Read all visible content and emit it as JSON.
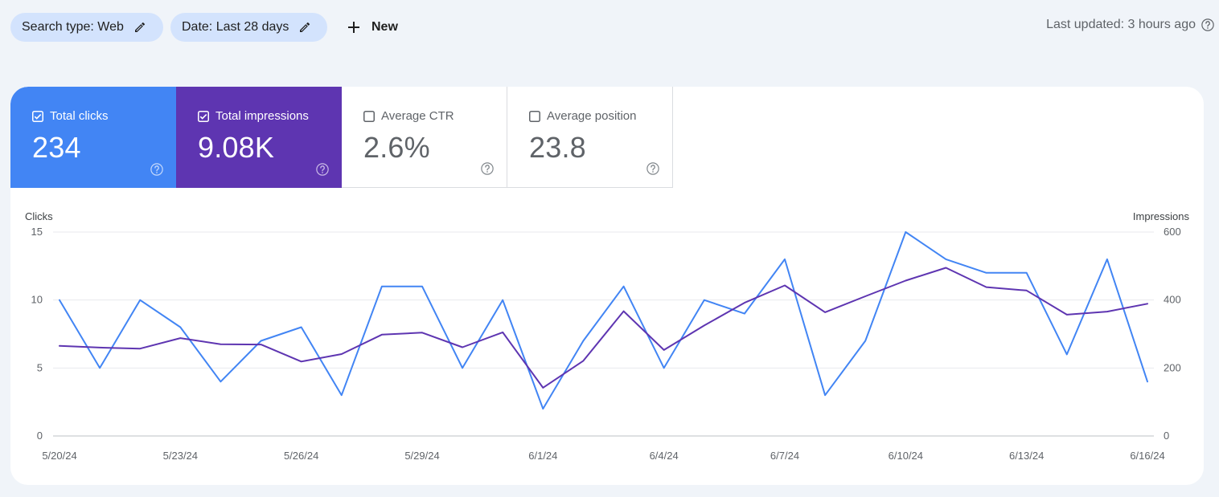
{
  "toolbar": {
    "search_type_label": "Search type: Web",
    "date_label": "Date: Last 28 days",
    "new_label": "New",
    "last_updated": "Last updated: 3 hours ago"
  },
  "metrics": {
    "clicks": {
      "label": "Total clicks",
      "value": "234",
      "checked": true,
      "color": "#4285f4"
    },
    "impressions": {
      "label": "Total impressions",
      "value": "9.08K",
      "checked": true,
      "color": "#5e35b1"
    },
    "ctr": {
      "label": "Average CTR",
      "value": "2.6%",
      "checked": false
    },
    "position": {
      "label": "Average position",
      "value": "23.8",
      "checked": false
    }
  },
  "chart_data": {
    "type": "line",
    "x": [
      "5/20/24",
      "5/21/24",
      "5/22/24",
      "5/23/24",
      "5/24/24",
      "5/25/24",
      "5/26/24",
      "5/27/24",
      "5/28/24",
      "5/29/24",
      "5/30/24",
      "5/31/24",
      "6/1/24",
      "6/2/24",
      "6/3/24",
      "6/4/24",
      "6/5/24",
      "6/6/24",
      "6/7/24",
      "6/8/24",
      "6/9/24",
      "6/10/24",
      "6/11/24",
      "6/12/24",
      "6/13/24",
      "6/14/24",
      "6/15/24",
      "6/16/24"
    ],
    "x_tick_labels": [
      "5/20/24",
      "5/23/24",
      "5/26/24",
      "5/29/24",
      "6/1/24",
      "6/4/24",
      "6/7/24",
      "6/10/24",
      "6/13/24",
      "6/16/24"
    ],
    "y_left": {
      "label": "Clicks",
      "ylim": [
        0,
        15
      ],
      "ticks": [
        "0",
        "5",
        "10",
        "15"
      ]
    },
    "y_right": {
      "label": "Impressions",
      "ylim": [
        0,
        600
      ],
      "ticks": [
        "0",
        "200",
        "400",
        "600"
      ]
    },
    "grid": true,
    "legend": "none",
    "series": [
      {
        "name": "Total clicks",
        "axis": "left",
        "color": "#4285f4",
        "values": [
          10,
          5,
          10,
          8,
          4,
          7,
          8,
          3,
          11,
          11,
          5,
          10,
          2,
          7,
          11,
          5,
          10,
          9,
          13,
          3,
          7,
          15,
          13,
          12,
          12,
          6,
          13,
          4
        ]
      },
      {
        "name": "Total impressions",
        "axis": "right",
        "color": "#5e35b1",
        "values": [
          265,
          260,
          257,
          288,
          270,
          269,
          219,
          241,
          298,
          304,
          261,
          305,
          142,
          221,
          367,
          253,
          325,
          392,
          443,
          364,
          411,
          457,
          495,
          438,
          428,
          357,
          366,
          389
        ]
      }
    ]
  }
}
